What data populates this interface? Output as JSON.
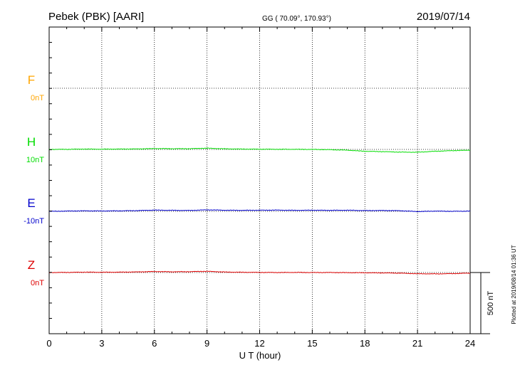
{
  "header": {
    "station": "Pebek (PBK)  [AARI]",
    "coords": "GG ( 70.09°, 170.93°)",
    "date": "2019/07/14"
  },
  "footer": {
    "plotted": "Plotted at 2019/08/14 01:36 UT"
  },
  "chart_data": {
    "type": "line",
    "xlabel": "U T (hour)",
    "xlim": [
      0,
      24
    ],
    "x_ticks": [
      "0",
      "3",
      "6",
      "9",
      "12",
      "15",
      "18",
      "21",
      "24"
    ],
    "scale_bar": {
      "label": "500 nT",
      "value_nT": 500
    },
    "grid": true,
    "series": [
      {
        "name": "F",
        "baseline_label": "0nT",
        "color": "#ffa500",
        "x": [],
        "y": []
      },
      {
        "name": "H",
        "baseline_label": "10nT",
        "color": "#00dd00",
        "x": [
          0,
          1,
          2,
          3,
          4,
          5,
          6,
          7,
          8,
          9,
          10,
          11,
          12,
          13,
          14,
          15,
          16,
          17,
          18,
          19,
          20,
          21,
          22,
          23,
          24
        ],
        "y": [
          10,
          11,
          13,
          12,
          13,
          14,
          17,
          16,
          16,
          20,
          15,
          13,
          12,
          11,
          11,
          10,
          8,
          4,
          -5,
          -8,
          -12,
          -13,
          -5,
          0,
          4
        ]
      },
      {
        "name": "E",
        "baseline_label": "-10nT",
        "color": "#0000cc",
        "x": [
          0,
          1,
          2,
          3,
          4,
          5,
          6,
          7,
          8,
          9,
          10,
          11,
          12,
          13,
          14,
          15,
          16,
          17,
          18,
          19,
          20,
          21,
          22,
          23,
          24
        ],
        "y": [
          -10,
          -8,
          -6,
          -7,
          -6,
          -4,
          0,
          -2,
          -3,
          2,
          -1,
          -2,
          -1,
          0,
          -2,
          -1,
          -2,
          -1,
          -4,
          -3,
          -5,
          -12,
          -8,
          -10,
          -8
        ]
      },
      {
        "name": "Z",
        "baseline_label": "0nT",
        "color": "#dd0000",
        "x": [
          0,
          1,
          2,
          3,
          4,
          5,
          6,
          7,
          8,
          9,
          10,
          11,
          12,
          13,
          14,
          15,
          16,
          17,
          18,
          19,
          20,
          21,
          22,
          23,
          24
        ],
        "y": [
          0,
          1,
          3,
          2,
          3,
          5,
          8,
          6,
          7,
          10,
          4,
          2,
          1,
          0,
          1,
          0,
          0,
          -1,
          -2,
          -3,
          -5,
          -10,
          -11,
          -9,
          -5
        ]
      }
    ]
  }
}
